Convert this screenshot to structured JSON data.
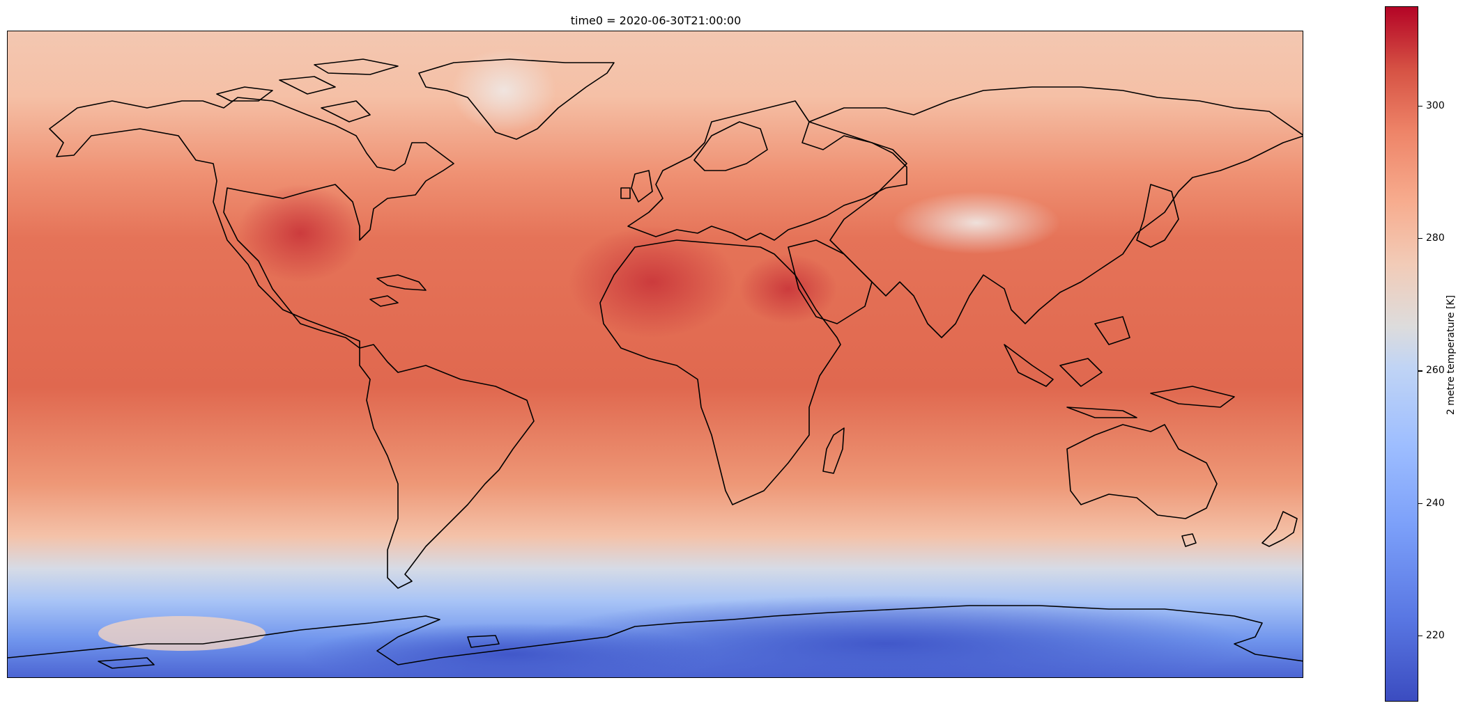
{
  "title": "time0 = 2020-06-30T21:00:00",
  "colorbar": {
    "label": "2 metre temperature [K]",
    "range": [
      210,
      315
    ],
    "ticks": [
      {
        "value": 300,
        "label": "300"
      },
      {
        "value": 280,
        "label": "280"
      },
      {
        "value": 260,
        "label": "260"
      },
      {
        "value": 240,
        "label": "240"
      },
      {
        "value": 220,
        "label": "220"
      }
    ],
    "colormap": "coolwarm",
    "colors": [
      "#3b4cc0",
      "#7b9ff9",
      "#dddcdc",
      "#ee8468",
      "#b40426"
    ]
  },
  "map": {
    "projection": "PlateCarree",
    "variable": "2 metre temperature",
    "coastlines": true
  }
}
